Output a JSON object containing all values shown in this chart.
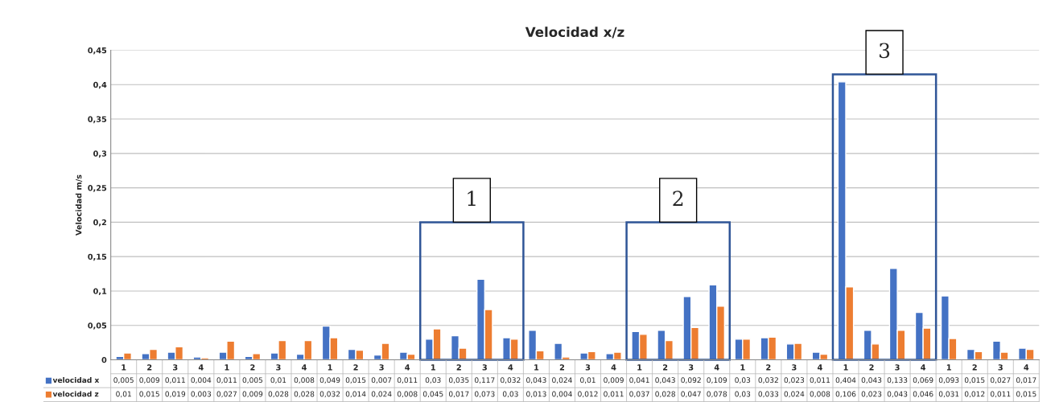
{
  "chart_data": {
    "type": "bar",
    "title": "Velocidad x/z",
    "ylabel": "Velocidad m/s",
    "categories": [
      "1",
      "2",
      "3",
      "4",
      "1",
      "2",
      "3",
      "4",
      "1",
      "2",
      "3",
      "4",
      "1",
      "2",
      "3",
      "4",
      "1",
      "2",
      "3",
      "4",
      "1",
      "2",
      "3",
      "4",
      "1",
      "2",
      "3",
      "4",
      "1",
      "2",
      "3",
      "4",
      "1",
      "2",
      "3",
      "4"
    ],
    "series": [
      {
        "name": "velocidad x",
        "color": "#4472c4",
        "values": [
          0.005,
          0.009,
          0.011,
          0.004,
          0.011,
          0.005,
          0.01,
          0.008,
          0.049,
          0.015,
          0.007,
          0.011,
          0.03,
          0.035,
          0.117,
          0.032,
          0.043,
          0.024,
          0.01,
          0.009,
          0.041,
          0.043,
          0.092,
          0.109,
          0.03,
          0.032,
          0.023,
          0.011,
          0.404,
          0.043,
          0.133,
          0.069,
          0.093,
          0.015,
          0.027,
          0.017
        ],
        "value_labels": [
          "0,005",
          "0,009",
          "0,011",
          "0,004",
          "0,011",
          "0,005",
          "0,01",
          "0,008",
          "0,049",
          "0,015",
          "0,007",
          "0,011",
          "0,03",
          "0,035",
          "0,117",
          "0,032",
          "0,043",
          "0,024",
          "0,01",
          "0,009",
          "0,041",
          "0,043",
          "0,092",
          "0,109",
          "0,03",
          "0,032",
          "0,023",
          "0,011",
          "0,404",
          "0,043",
          "0,133",
          "0,069",
          "0,093",
          "0,015",
          "0,027",
          "0,017"
        ]
      },
      {
        "name": "velocidad z",
        "color": "#ed7d31",
        "values": [
          0.01,
          0.015,
          0.019,
          0.003,
          0.027,
          0.009,
          0.028,
          0.028,
          0.032,
          0.014,
          0.024,
          0.008,
          0.045,
          0.017,
          0.073,
          0.03,
          0.013,
          0.004,
          0.012,
          0.011,
          0.037,
          0.028,
          0.047,
          0.078,
          0.03,
          0.033,
          0.024,
          0.008,
          0.106,
          0.023,
          0.043,
          0.046,
          0.031,
          0.012,
          0.011,
          0.015
        ],
        "value_labels": [
          "0,01",
          "0,015",
          "0,019",
          "0,003",
          "0,027",
          "0,009",
          "0,028",
          "0,028",
          "0,032",
          "0,014",
          "0,024",
          "0,008",
          "0,045",
          "0,017",
          "0,073",
          "0,03",
          "0,013",
          "0,004",
          "0,012",
          "0,011",
          "0,037",
          "0,028",
          "0,047",
          "0,078",
          "0,03",
          "0,033",
          "0,024",
          "0,008",
          "0,106",
          "0,023",
          "0,043",
          "0,046",
          "0,031",
          "0,012",
          "0,011",
          "0,015"
        ]
      }
    ],
    "ylim": [
      0,
      0.45
    ],
    "yticks": [
      {
        "value": 0,
        "label": "0"
      },
      {
        "value": 0.05,
        "label": "0,05"
      },
      {
        "value": 0.1,
        "label": "0,1"
      },
      {
        "value": 0.15,
        "label": "0,15"
      },
      {
        "value": 0.2,
        "label": "0,2"
      },
      {
        "value": 0.25,
        "label": "0,25"
      },
      {
        "value": 0.3,
        "label": "0,3"
      },
      {
        "value": 0.35,
        "label": "0,35"
      },
      {
        "value": 0.4,
        "label": "0,4"
      },
      {
        "value": 0.45,
        "label": "0,45"
      }
    ],
    "grid": "y",
    "legend": "bottom",
    "annotations": [
      "1",
      "2",
      "3"
    ]
  }
}
